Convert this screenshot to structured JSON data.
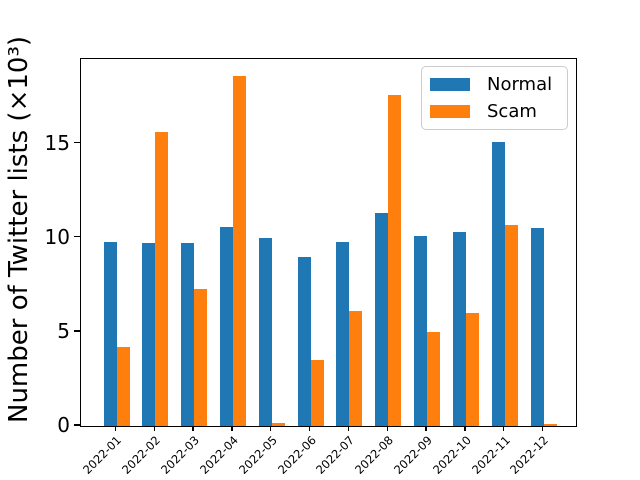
{
  "figure": {
    "background": "#ffffff"
  },
  "chart_data": {
    "type": "bar",
    "title": "",
    "xlabel": "",
    "ylabel": "Number of Twitter lists (×10³)",
    "categories": [
      "2022-01",
      "2022-02",
      "2022-03",
      "2022-04",
      "2022-05",
      "2022-06",
      "2022-07",
      "2022-08",
      "2022-09",
      "2022-10",
      "2022-11",
      "2022-12"
    ],
    "series": [
      {
        "name": "Normal",
        "color": "#1f77b4",
        "values": [
          9.8,
          9.7,
          9.7,
          10.6,
          10.0,
          9.0,
          9.8,
          11.3,
          10.1,
          10.3,
          15.1,
          10.5
        ]
      },
      {
        "name": "Scam",
        "color": "#ff7f0e",
        "values": [
          4.2,
          15.6,
          7.3,
          18.6,
          0.15,
          3.5,
          6.1,
          17.6,
          5.0,
          6.0,
          10.7,
          0.1
        ]
      }
    ],
    "yticks": [
      0,
      5,
      10,
      15
    ],
    "ylim": [
      0,
      19.5
    ],
    "grid": false,
    "legend_position": "upper right",
    "x_tick_rotation": 45,
    "bar_group_mode": "grouped"
  }
}
